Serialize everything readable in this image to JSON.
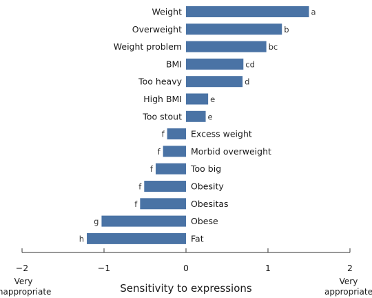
{
  "chart_data": {
    "type": "bar",
    "orientation": "horizontal",
    "xlabel": "Sensitivity to expressions",
    "xlim": [
      -2,
      2
    ],
    "xticks": [
      -2,
      -1,
      0,
      1,
      2
    ],
    "xtick_labels": [
      "−2",
      "−1",
      "0",
      "1",
      "2"
    ],
    "left_end_label": [
      "Very",
      "inappropriate"
    ],
    "right_end_label": [
      "Very",
      "appropriate"
    ],
    "bar_color": "#4a73a5",
    "grid": false,
    "categories": [
      "Weight",
      "Overweight",
      "Weight problem",
      "BMI",
      "Too heavy",
      "High BMI",
      "Too stout",
      "Excess weight",
      "Morbid overweight",
      "Too big",
      "Obesity",
      "Obesitas",
      "Obese",
      "Fat"
    ],
    "values": [
      1.5,
      1.17,
      0.98,
      0.7,
      0.69,
      0.27,
      0.24,
      -0.23,
      -0.28,
      -0.37,
      -0.51,
      -0.56,
      -1.03,
      -1.21
    ],
    "significance_letters": [
      "a",
      "b",
      "bc",
      "cd",
      "d",
      "e",
      "e",
      "f",
      "f",
      "f",
      "f",
      "f",
      "g",
      "h"
    ]
  }
}
